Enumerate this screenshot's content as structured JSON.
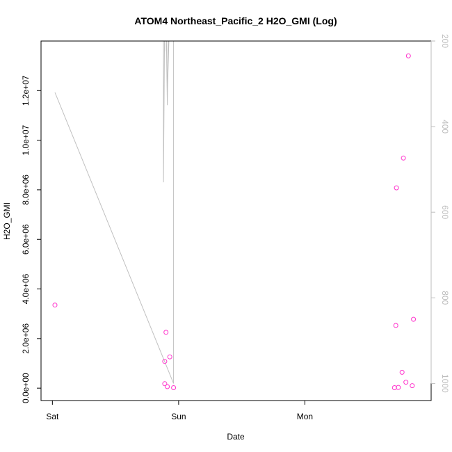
{
  "chart_data": {
    "type": "scatter",
    "title": "ATOM4 Northeast_Pacific_2 H2O_GMI (Log)",
    "xlabel": "Date",
    "ylabel": "H2O_GMI",
    "x_ticks": [
      {
        "t": 0.0,
        "label": "Sat"
      },
      {
        "t": 1.0,
        "label": "Sun"
      },
      {
        "t": 2.0,
        "label": "Mon"
      }
    ],
    "xlim": [
      -0.09,
      3.0
    ],
    "ylim": [
      -500000,
      14000000
    ],
    "y_ticks": [
      {
        "v": 0,
        "label": "0.0e+00"
      },
      {
        "v": 2000000,
        "label": "2.0e+06"
      },
      {
        "v": 4000000,
        "label": "4.0e+06"
      },
      {
        "v": 6000000,
        "label": "6.0e+06"
      },
      {
        "v": 8000000,
        "label": "8.0e+06"
      },
      {
        "v": 10000000,
        "label": "1.0e+07"
      },
      {
        "v": 12000000,
        "label": "1.2e+07"
      }
    ],
    "y2lim": [
      1040,
      200
    ],
    "y2_ticks": [
      {
        "v": 200,
        "label": "200"
      },
      {
        "v": 400,
        "label": "400"
      },
      {
        "v": 600,
        "label": "600"
      },
      {
        "v": 800,
        "label": "800"
      },
      {
        "v": 1000,
        "label": "1000"
      }
    ],
    "series": [
      {
        "kind": "points",
        "axis": "left",
        "color": "#ff33cc",
        "points": [
          {
            "t": 0.02,
            "v": 3350000
          },
          {
            "t": 0.89,
            "v": 180000
          },
          {
            "t": 0.89,
            "v": 1080000
          },
          {
            "t": 0.9,
            "v": 2250000
          },
          {
            "t": 0.91,
            "v": 60000
          },
          {
            "t": 0.93,
            "v": 1260000
          },
          {
            "t": 0.96,
            "v": 20000
          },
          {
            "t": 2.71,
            "v": 20000
          },
          {
            "t": 2.72,
            "v": 2530000
          },
          {
            "t": 2.725,
            "v": 8080000
          },
          {
            "t": 2.74,
            "v": 30000
          },
          {
            "t": 2.77,
            "v": 640000
          },
          {
            "t": 2.78,
            "v": 9280000
          },
          {
            "t": 2.8,
            "v": 240000
          },
          {
            "t": 2.82,
            "v": 13400000
          },
          {
            "t": 2.85,
            "v": 100000
          },
          {
            "t": 2.86,
            "v": 2780000
          }
        ]
      },
      {
        "kind": "line",
        "axis": "right",
        "color": "#c0c0c0",
        "points": [
          {
            "t": 0.02,
            "v": 320
          },
          {
            "t": 0.96,
            "v": 1000
          },
          {
            "t": 0.96,
            "v": 130
          },
          {
            "t": 0.93,
            "v": 130
          },
          {
            "t": 0.91,
            "v": 325
          },
          {
            "t": 0.9,
            "v": 130
          },
          {
            "t": 0.89,
            "v": 130
          },
          {
            "t": 0.89,
            "v": 225
          },
          {
            "t": 0.89,
            "v": 160
          },
          {
            "t": 0.89,
            "v": 130
          },
          {
            "t": 0.88,
            "v": 130
          },
          {
            "t": 0.88,
            "v": 530
          },
          {
            "t": 0.89,
            "v": 130
          },
          {
            "t": 0.9,
            "v": 130
          },
          {
            "t": 0.91,
            "v": 350
          },
          {
            "t": 0.92,
            "v": 130
          }
        ]
      }
    ]
  }
}
